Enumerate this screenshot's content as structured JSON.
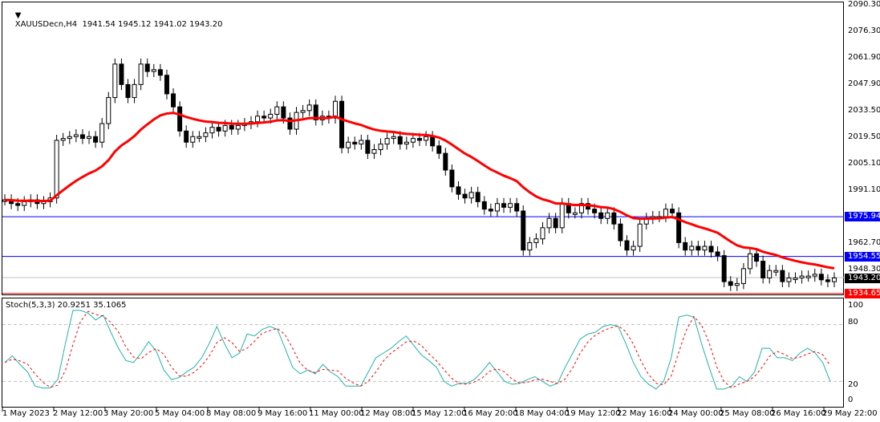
{
  "header": {
    "symbol": "XAUUSDecn,H4",
    "ohlc": "1941.54 1945.12 1941.02 1943.20",
    "title_text": "XAUUSDecn,H4  1941.54 1945.12 1941.02 1943.20"
  },
  "price_axis": {
    "labels": [
      "2090.30",
      "2076.30",
      "2061.90",
      "2047.90",
      "2033.50",
      "2019.50",
      "2005.10",
      "1991.10",
      "1962.70",
      "1948.30"
    ],
    "tags": [
      {
        "value": "1975.94",
        "color": "#0000ff"
      },
      {
        "value": "1954.55",
        "color": "#0000ff"
      },
      {
        "value": "1943.20",
        "color": "#000000"
      },
      {
        "value": "1934.65",
        "color": "#ff0000"
      }
    ]
  },
  "stoch": {
    "title": "Stoch(5,3,3) 20.9251 35.1065",
    "main_value": "20.9251",
    "signal_value": "35.1065",
    "levels": [
      "100",
      "80",
      "20",
      "0"
    ],
    "main_color": "#20b2aa",
    "signal_color": "#ff0000"
  },
  "time_axis": {
    "labels": [
      "1 May 2023",
      "2 May 12:00",
      "3 May 20:00",
      "5 May 04:00",
      "8 May 08:00",
      "9 May 16:00",
      "11 May 00:00",
      "12 May 08:00",
      "15 May 12:00",
      "16 May 20:00",
      "18 May 04:00",
      "19 May 12:00",
      "22 May 16:00",
      "24 May 00:00",
      "25 May 08:00",
      "26 May 16:00",
      "29 May 22:00"
    ]
  },
  "chart_data": {
    "type": "candlestick",
    "title": "XAUUSDecn,H4",
    "ylim": [
      1934.65,
      2090.3
    ],
    "horizontal_lines": [
      {
        "price": 1975.94,
        "color": "#0000ff"
      },
      {
        "price": 1954.55,
        "color": "#0000ff"
      },
      {
        "price": 1943.2,
        "color": "#c0c0c0"
      },
      {
        "price": 1934.65,
        "color": "#ff0000"
      }
    ],
    "moving_average_color": "#ff0000",
    "last_close": 1943.2,
    "stochastic": {
      "k": 20.9251,
      "d": 35.1065,
      "levels": [
        20,
        80
      ]
    }
  }
}
